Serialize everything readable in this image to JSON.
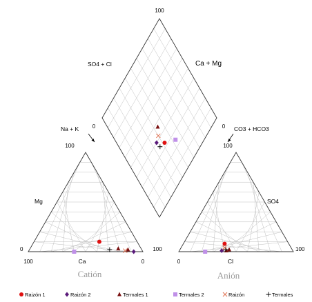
{
  "chart_data": {
    "type": "scatter",
    "diagram": "piper",
    "top_labels": {
      "top": "100",
      "left_edge": "SO4 + Cl",
      "right_edge": "Ca + Mg",
      "left_zero": "0",
      "right_zero": "0",
      "bottom_left": "Na + K",
      "bottom_right": "CO3 + HCO3"
    },
    "cation_triangle": {
      "title": "Catión",
      "left_label": "Mg",
      "bottom_label": "Ca",
      "tick_100_top": "100",
      "tick_100_left": "100",
      "tick_0_right": "0",
      "tick_0_left": "0",
      "tick_100_right": "100"
    },
    "anion_triangle": {
      "title": "Anión",
      "right_label": "SO4",
      "bottom_label": "Cl",
      "tick_0_left": "0",
      "tick_100_right": "100",
      "tick_100_top": "100"
    },
    "legend": [
      {
        "key": "r1",
        "label": "Raizón 1",
        "marker": "circle",
        "color": "#e01010"
      },
      {
        "key": "r2",
        "label": "Raizón 2",
        "marker": "diamond",
        "color": "#5a1a7a"
      },
      {
        "key": "t1",
        "label": "Termales 1",
        "marker": "triangle",
        "color": "#7a1010"
      },
      {
        "key": "t2",
        "label": "Termales 2",
        "marker": "square",
        "color": "#c090e8"
      },
      {
        "key": "rz",
        "label": "Raizón",
        "marker": "x",
        "color": "#e07050"
      },
      {
        "key": "tm",
        "label": "Termales",
        "marker": "plus",
        "color": "#000000"
      }
    ],
    "cation_points": [
      {
        "series": "r1",
        "Ca": 33,
        "Mg": 10
      },
      {
        "series": "r2",
        "Ca": 8,
        "Mg": 0
      },
      {
        "series": "t1",
        "Ca": 20,
        "Mg": 3
      },
      {
        "series": "t1",
        "Ca": 12,
        "Mg": 2
      },
      {
        "series": "t2",
        "Ca": 60,
        "Mg": 0
      },
      {
        "series": "rz",
        "Ca": 15,
        "Mg": 1
      },
      {
        "series": "tm",
        "Ca": 28,
        "Mg": 2
      }
    ],
    "anion_points": [
      {
        "series": "r1",
        "SO4": 8,
        "Cl": 36
      },
      {
        "series": "r2",
        "SO4": 1,
        "Cl": 37
      },
      {
        "series": "t1",
        "SO4": 2,
        "Cl": 43
      },
      {
        "series": "t1",
        "SO4": 1,
        "Cl": 41
      },
      {
        "series": "t2",
        "SO4": 0,
        "Cl": 23
      },
      {
        "series": "rz",
        "SO4": 4,
        "Cl": 38
      },
      {
        "series": "tm",
        "SO4": 2,
        "Cl": 40
      }
    ],
    "diamond_points": [
      {
        "series": "r1",
        "so4cl": 33,
        "camg": 42
      },
      {
        "series": "r2",
        "so4cl": 40,
        "camg": 35
      },
      {
        "series": "t1",
        "so4cl": 47,
        "camg": 44
      },
      {
        "series": "t2",
        "so4cl": 25,
        "camg": 53
      },
      {
        "series": "rz",
        "so4cl": 42,
        "camg": 40
      },
      {
        "series": "tm",
        "so4cl": 35,
        "camg": 36
      }
    ]
  }
}
